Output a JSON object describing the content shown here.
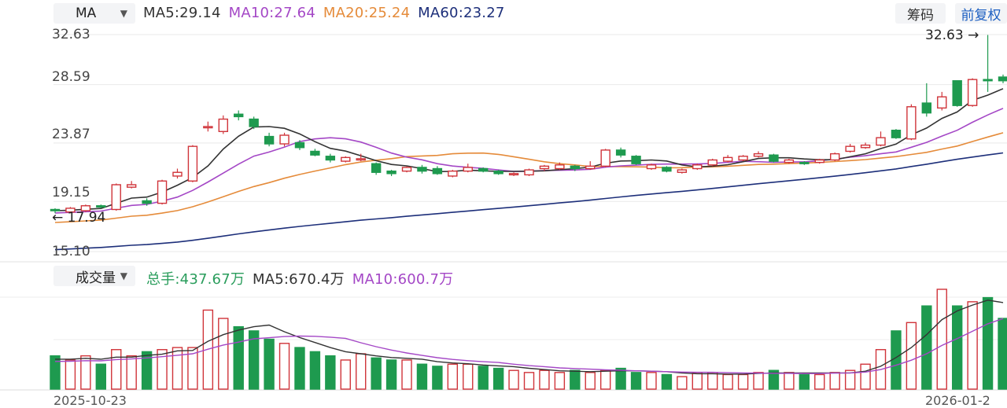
{
  "indicator_select": "MA",
  "ma_legend": [
    {
      "label": "MA5:29.14",
      "color": "#333333"
    },
    {
      "label": "MA10:27.64",
      "color": "#a447c6"
    },
    {
      "label": "MA20:25.24",
      "color": "#e58b3a"
    },
    {
      "label": "MA60:23.27",
      "color": "#1d2f7a"
    }
  ],
  "buttons": {
    "chips": "筹码",
    "adjust": "前复权"
  },
  "price_axis": [
    "32.63",
    "28.59",
    "23.87",
    "19.15",
    "15.10"
  ],
  "high_marker": "32.63",
  "low_marker": "17.94",
  "volume_select": "成交量",
  "volume_legend": [
    {
      "label": "总手:437.67万",
      "color": "#2a9d5c"
    },
    {
      "label": "MA5:670.4万",
      "color": "#333333"
    },
    {
      "label": "MA10:600.7万",
      "color": "#a447c6"
    }
  ],
  "x_labels": [
    "2025-10-23",
    "2026-01-2"
  ],
  "colors": {
    "up": "#d0343a",
    "down": "#1e9a4f"
  },
  "chart_data": {
    "type": "candlestick",
    "ylim": [
      15.1,
      32.63
    ],
    "candles": [
      [
        18.5,
        18.4,
        18.6,
        18.2
      ],
      [
        18.3,
        18.6,
        18.7,
        18.2
      ],
      [
        18.4,
        18.8,
        18.9,
        18.3
      ],
      [
        18.8,
        18.7,
        18.9,
        18.6
      ],
      [
        18.5,
        20.5,
        20.6,
        18.4
      ],
      [
        20.3,
        20.5,
        20.8,
        20.2
      ],
      [
        19.2,
        19.0,
        19.4,
        18.8
      ],
      [
        19.0,
        20.8,
        20.9,
        18.9
      ],
      [
        21.2,
        21.5,
        21.8,
        21.0
      ],
      [
        20.8,
        23.6,
        23.7,
        20.7
      ],
      [
        25.1,
        25.2,
        25.6,
        24.8
      ],
      [
        24.8,
        25.8,
        26.1,
        24.6
      ],
      [
        26.2,
        26.0,
        26.5,
        25.7
      ],
      [
        25.8,
        25.2,
        26.0,
        25.0
      ],
      [
        24.4,
        23.8,
        24.7,
        23.6
      ],
      [
        23.8,
        24.5,
        24.7,
        23.6
      ],
      [
        23.9,
        23.5,
        24.1,
        23.3
      ],
      [
        23.2,
        22.9,
        23.4,
        22.8
      ],
      [
        22.8,
        22.5,
        23.0,
        22.3
      ],
      [
        22.4,
        22.7,
        22.8,
        22.3
      ],
      [
        22.5,
        22.6,
        23.0,
        22.4
      ],
      [
        22.2,
        21.5,
        22.3,
        21.3
      ],
      [
        21.6,
        21.4,
        21.7,
        21.2
      ],
      [
        21.6,
        21.9,
        22.0,
        21.5
      ],
      [
        21.9,
        21.6,
        22.1,
        21.4
      ],
      [
        21.8,
        21.4,
        22.0,
        21.3
      ],
      [
        21.2,
        21.6,
        21.7,
        21.1
      ],
      [
        21.6,
        21.9,
        22.2,
        21.5
      ],
      [
        21.8,
        21.6,
        21.9,
        21.5
      ],
      [
        21.6,
        21.4,
        21.7,
        21.3
      ],
      [
        21.3,
        21.4,
        21.5,
        21.2
      ],
      [
        21.3,
        21.7,
        21.8,
        21.2
      ],
      [
        21.8,
        22.0,
        22.1,
        21.6
      ],
      [
        21.8,
        22.1,
        22.3,
        21.7
      ],
      [
        22.0,
        21.8,
        22.1,
        21.6
      ],
      [
        21.8,
        22.0,
        22.4,
        21.7
      ],
      [
        22.0,
        23.3,
        23.4,
        21.9
      ],
      [
        23.3,
        22.9,
        23.5,
        22.7
      ],
      [
        22.8,
        22.2,
        22.9,
        22.1
      ],
      [
        21.8,
        22.1,
        22.2,
        21.7
      ],
      [
        21.9,
        21.6,
        22.0,
        21.5
      ],
      [
        21.5,
        21.7,
        21.8,
        21.4
      ],
      [
        21.8,
        22.1,
        22.2,
        21.7
      ],
      [
        22.1,
        22.5,
        22.6,
        22.0
      ],
      [
        22.4,
        22.7,
        22.9,
        22.3
      ],
      [
        22.5,
        22.8,
        22.9,
        22.4
      ],
      [
        22.8,
        23.0,
        23.2,
        22.7
      ],
      [
        22.9,
        22.4,
        23.0,
        22.3
      ],
      [
        22.3,
        22.5,
        22.6,
        22.2
      ],
      [
        22.3,
        22.2,
        22.4,
        22.1
      ],
      [
        22.3,
        22.5,
        22.6,
        22.2
      ],
      [
        22.5,
        23.0,
        23.1,
        22.4
      ],
      [
        23.2,
        23.6,
        23.8,
        23.1
      ],
      [
        23.5,
        23.7,
        23.9,
        23.4
      ],
      [
        23.7,
        24.3,
        24.8,
        23.6
      ],
      [
        24.9,
        24.3,
        25.0,
        24.2
      ],
      [
        24.2,
        26.8,
        27.0,
        24.1
      ],
      [
        27.1,
        26.3,
        28.7,
        26.0
      ],
      [
        26.7,
        27.6,
        28.0,
        26.5
      ],
      [
        28.9,
        26.9,
        28.9,
        26.8
      ],
      [
        26.9,
        29.0,
        29.1,
        26.8
      ],
      [
        29.0,
        28.9,
        32.6,
        28.0
      ],
      [
        29.2,
        28.9,
        29.4,
        28.7
      ]
    ],
    "volume_values": [
      80,
      70,
      80,
      60,
      95,
      80,
      90,
      95,
      100,
      100,
      190,
      170,
      150,
      140,
      120,
      110,
      100,
      90,
      80,
      70,
      85,
      75,
      70,
      70,
      60,
      55,
      60,
      60,
      55,
      50,
      45,
      40,
      45,
      40,
      45,
      40,
      45,
      50,
      40,
      40,
      35,
      30,
      40,
      40,
      35,
      35,
      40,
      45,
      40,
      35,
      35,
      40,
      45,
      60,
      95,
      140,
      160,
      200,
      240,
      200,
      210,
      220,
      170
    ],
    "ma_lines": {
      "ma5_close_end": 29.14,
      "ma10_close_end": 27.64,
      "ma20_close_end": 25.24,
      "ma60_close_end": 23.27
    }
  }
}
